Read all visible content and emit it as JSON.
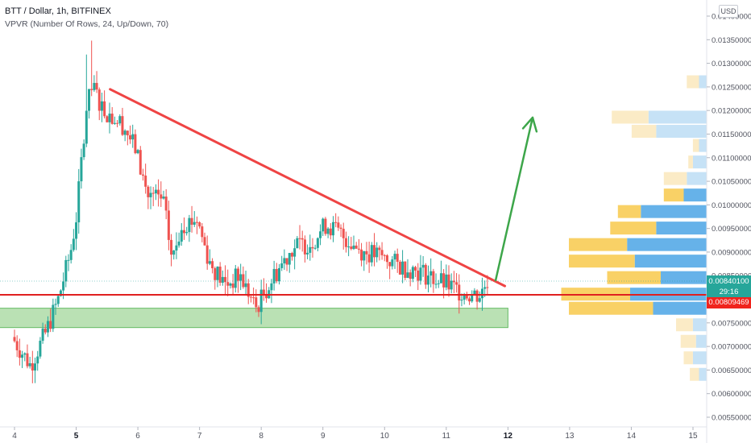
{
  "header": {
    "symbol_line": "BTT / Dollar, 1h, BITFINEX",
    "indicator_line": "VPVR (Number Of Rows, 24, Up/Down, 70)"
  },
  "currency_badge": "USD",
  "price_tags": {
    "current_price": "0.00840100",
    "countdown": "29:16",
    "line_price": "0.00809469"
  },
  "colors": {
    "up": "#26a69a",
    "down": "#ef5350",
    "trendline": "#ef4444",
    "support_line": "#e02020",
    "zone_fill": "#b7e0b0",
    "zone_stroke": "#5cb85c",
    "arrow": "#3da64a",
    "vp_up": "#5eaee8",
    "vp_down": "#f9cf5e",
    "vp_up_light": "#c3e0f6",
    "vp_down_light": "#fbeac3"
  },
  "chart_data": {
    "type": "candlestick",
    "y_axis": {
      "min": 0.0053,
      "max": 0.0145,
      "tick_labels": [
        "0.00550000",
        "0.00600000",
        "0.00650000",
        "0.00700000",
        "0.00750000",
        "0.00800000",
        "0.00850000",
        "0.00900000",
        "0.00950000",
        "0.01000000",
        "0.01050000",
        "0.01100000",
        "0.01150000",
        "0.01200000",
        "0.01250000",
        "0.01300000",
        "0.01350000",
        "0.01400000"
      ],
      "tick_values": [
        0.0055,
        0.006,
        0.0065,
        0.007,
        0.0075,
        0.008,
        0.0085,
        0.009,
        0.0095,
        0.01,
        0.0105,
        0.011,
        0.0115,
        0.012,
        0.0125,
        0.013,
        0.0135,
        0.014
      ]
    },
    "x_axis": {
      "tick_labels": [
        "4",
        "5",
        "6",
        "7",
        "8",
        "9",
        "10",
        "11",
        "12",
        "13",
        "14",
        "15"
      ],
      "bold_labels": [
        "5",
        "12"
      ],
      "first_day": 4,
      "last_day": 15
    },
    "candles_summary": {
      "start_day": 4.0,
      "end_day": 11.7,
      "open_start": 0.0072,
      "price_path": [
        [
          4.0,
          0.0072
        ],
        [
          4.3,
          0.0066
        ],
        [
          4.55,
          0.0073
        ],
        [
          4.75,
          0.008
        ],
        [
          4.95,
          0.009
        ],
        [
          5.05,
          0.0098
        ],
        [
          5.2,
          0.012
        ],
        [
          5.3,
          0.0125
        ],
        [
          5.5,
          0.012
        ],
        [
          5.8,
          0.0117
        ],
        [
          6.0,
          0.0112
        ],
        [
          6.2,
          0.0102
        ],
        [
          6.45,
          0.0101
        ],
        [
          6.6,
          0.0088
        ],
        [
          6.75,
          0.0096
        ],
        [
          7.0,
          0.0097
        ],
        [
          7.2,
          0.0088
        ],
        [
          7.45,
          0.0083
        ],
        [
          7.7,
          0.0085
        ],
        [
          7.95,
          0.0078
        ],
        [
          8.25,
          0.0085
        ],
        [
          8.55,
          0.0091
        ],
        [
          8.85,
          0.0092
        ],
        [
          9.1,
          0.0096
        ],
        [
          9.4,
          0.0093
        ],
        [
          9.7,
          0.009
        ],
        [
          10.0,
          0.0089
        ],
        [
          10.3,
          0.0087
        ],
        [
          10.6,
          0.0086
        ],
        [
          10.9,
          0.0084
        ],
        [
          11.2,
          0.0082
        ],
        [
          11.45,
          0.0081
        ],
        [
          11.6,
          0.0081
        ],
        [
          11.7,
          0.0084
        ]
      ]
    },
    "trendline": {
      "from": [
        5.55,
        0.01245
      ],
      "to": [
        11.95,
        0.00828
      ]
    },
    "support_line": {
      "price": 0.00809469
    },
    "support_zone": {
      "x_from": 3.75,
      "x_to": 12.0,
      "price_low": 0.0074,
      "price_high": 0.00781
    },
    "arrow": {
      "from": [
        11.8,
        0.0084
      ],
      "to": [
        12.4,
        0.01185
      ]
    },
    "volume_profile": [
      {
        "price": 0.0126,
        "up": 0.05,
        "down": 0.08,
        "light": true
      },
      {
        "price": 0.01185,
        "up": 0.38,
        "down": 0.24,
        "light": true
      },
      {
        "price": 0.01155,
        "up": 0.33,
        "down": 0.16,
        "light": true
      },
      {
        "price": 0.01125,
        "up": 0.05,
        "down": 0.04,
        "light": true
      },
      {
        "price": 0.0109,
        "up": 0.09,
        "down": 0.03,
        "light": true
      },
      {
        "price": 0.01055,
        "up": 0.13,
        "down": 0.15,
        "light": true
      },
      {
        "price": 0.0102,
        "up": 0.15,
        "down": 0.13,
        "light": false
      },
      {
        "price": 0.00985,
        "up": 0.43,
        "down": 0.15,
        "light": false
      },
      {
        "price": 0.0095,
        "up": 0.33,
        "down": 0.3,
        "light": false
      },
      {
        "price": 0.00915,
        "up": 0.52,
        "down": 0.38,
        "light": false
      },
      {
        "price": 0.0088,
        "up": 0.47,
        "down": 0.43,
        "light": false
      },
      {
        "price": 0.00845,
        "up": 0.3,
        "down": 0.35,
        "light": false
      },
      {
        "price": 0.0081,
        "up": 0.5,
        "down": 0.45,
        "light": false
      },
      {
        "price": 0.0078,
        "up": 0.35,
        "down": 0.55,
        "light": false
      },
      {
        "price": 0.00745,
        "up": 0.09,
        "down": 0.11,
        "light": true
      },
      {
        "price": 0.0071,
        "up": 0.07,
        "down": 0.1,
        "light": true
      },
      {
        "price": 0.00675,
        "up": 0.09,
        "down": 0.06,
        "light": true
      },
      {
        "price": 0.0064,
        "up": 0.05,
        "down": 0.06,
        "light": true
      }
    ]
  }
}
